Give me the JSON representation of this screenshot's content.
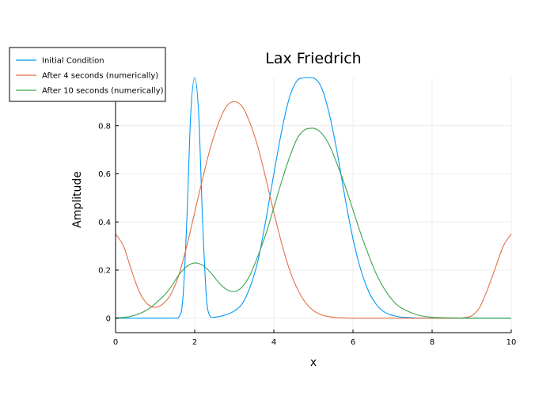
{
  "chart_data": {
    "type": "line",
    "title": "Lax Friedrich",
    "xlabel": "x",
    "ylabel": "Amplitude",
    "xlim": [
      0,
      10
    ],
    "ylim": [
      -0.06,
      1.0
    ],
    "x_ticks": [
      0,
      2,
      4,
      6,
      8,
      10
    ],
    "y_ticks": [
      0,
      0.2,
      0.4,
      0.6,
      0.8
    ],
    "x_tick_labels": [
      "0",
      "2",
      "4",
      "6",
      "8",
      "10"
    ],
    "y_tick_labels": [
      "0",
      "0.2",
      "0.4",
      "0.6",
      "0.8"
    ],
    "grid": true,
    "legend_position": "top-left",
    "series": [
      {
        "name": "Initial Condition",
        "color": "#009AFA",
        "x": [
          0,
          1.4,
          1.6,
          1.7,
          1.8,
          1.9,
          2.0,
          2.1,
          2.2,
          2.3,
          2.4,
          2.5,
          2.6,
          2.8,
          3.0,
          3.2,
          3.4,
          3.6,
          3.8,
          4.0,
          4.2,
          4.4,
          4.6,
          4.8,
          5.0,
          5.2,
          5.4,
          5.6,
          5.8,
          6.0,
          6.2,
          6.4,
          6.6,
          6.8,
          7.0,
          7.2,
          7.6,
          8.0,
          10.0
        ],
        "y": [
          0,
          0,
          0.005,
          0.08,
          0.4,
          0.85,
          1.0,
          0.85,
          0.4,
          0.08,
          0.005,
          0.004,
          0.006,
          0.015,
          0.03,
          0.06,
          0.13,
          0.24,
          0.41,
          0.6,
          0.78,
          0.92,
          0.99,
          1.0,
          1.0,
          0.96,
          0.85,
          0.69,
          0.5,
          0.33,
          0.2,
          0.11,
          0.055,
          0.025,
          0.012,
          0.005,
          0.001,
          0,
          0
        ]
      },
      {
        "name": "After 4 seconds (numerically)",
        "color": "#E26F46",
        "x": [
          0,
          0.2,
          0.4,
          0.6,
          0.8,
          1.0,
          1.2,
          1.4,
          1.6,
          1.8,
          2.0,
          2.2,
          2.4,
          2.6,
          2.8,
          3.0,
          3.2,
          3.4,
          3.6,
          3.8,
          4.0,
          4.2,
          4.4,
          4.6,
          4.8,
          5.0,
          5.2,
          5.4,
          5.6,
          5.8,
          6.0,
          6.5,
          7.0,
          8.0,
          8.6,
          8.8,
          9.0,
          9.2,
          9.4,
          9.6,
          9.8,
          10.0
        ],
        "y": [
          0.35,
          0.3,
          0.2,
          0.11,
          0.06,
          0.045,
          0.06,
          0.1,
          0.18,
          0.3,
          0.44,
          0.58,
          0.71,
          0.81,
          0.88,
          0.9,
          0.88,
          0.81,
          0.71,
          0.58,
          0.44,
          0.31,
          0.2,
          0.12,
          0.065,
          0.032,
          0.014,
          0.006,
          0.002,
          0.001,
          0,
          0,
          0,
          0,
          0,
          0.002,
          0.01,
          0.045,
          0.12,
          0.21,
          0.3,
          0.35
        ]
      },
      {
        "name": "After 10 seconds (numerically)",
        "color": "#3EA44E",
        "x": [
          0,
          0.4,
          0.8,
          1.2,
          1.4,
          1.6,
          1.8,
          2.0,
          2.2,
          2.4,
          2.6,
          2.8,
          3.0,
          3.2,
          3.4,
          3.6,
          3.8,
          4.0,
          4.2,
          4.4,
          4.6,
          4.8,
          5.0,
          5.2,
          5.4,
          5.6,
          5.8,
          6.0,
          6.2,
          6.4,
          6.6,
          6.8,
          7.0,
          7.2,
          7.6,
          8.0,
          8.6,
          9.0,
          10.0
        ],
        "y": [
          0.001,
          0.008,
          0.035,
          0.09,
          0.13,
          0.18,
          0.215,
          0.23,
          0.22,
          0.19,
          0.15,
          0.12,
          0.11,
          0.13,
          0.18,
          0.26,
          0.35,
          0.46,
          0.57,
          0.67,
          0.75,
          0.785,
          0.79,
          0.77,
          0.72,
          0.64,
          0.55,
          0.45,
          0.35,
          0.26,
          0.18,
          0.12,
          0.075,
          0.045,
          0.015,
          0.004,
          0.001,
          0,
          0
        ]
      }
    ]
  }
}
